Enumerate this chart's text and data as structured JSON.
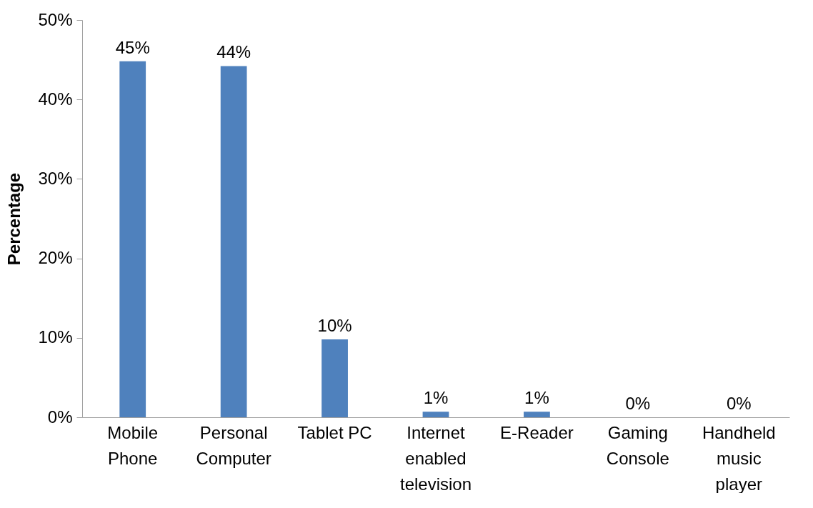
{
  "chart_data": {
    "type": "bar",
    "ylabel": "Percentage",
    "categories": [
      "Mobile Phone",
      "Personal Computer",
      "Tablet PC",
      "Internet enabled television",
      "E-Reader",
      "Gaming Console",
      "Handheld music player"
    ],
    "values": [
      44.8,
      44.2,
      9.8,
      0.7,
      0.7,
      0,
      0
    ],
    "value_labels": [
      "45%",
      "44%",
      "10%",
      "1%",
      "1%",
      "0%",
      "0%"
    ],
    "color": "#4f81bd",
    "ylim": [
      0,
      50
    ],
    "yticks": [
      {
        "value": 0,
        "label": "0%"
      },
      {
        "value": 10,
        "label": "10%"
      },
      {
        "value": 20,
        "label": "20%"
      },
      {
        "value": 30,
        "label": "30%"
      },
      {
        "value": 40,
        "label": "40%"
      },
      {
        "value": 50,
        "label": "50%"
      }
    ],
    "grid": false
  }
}
